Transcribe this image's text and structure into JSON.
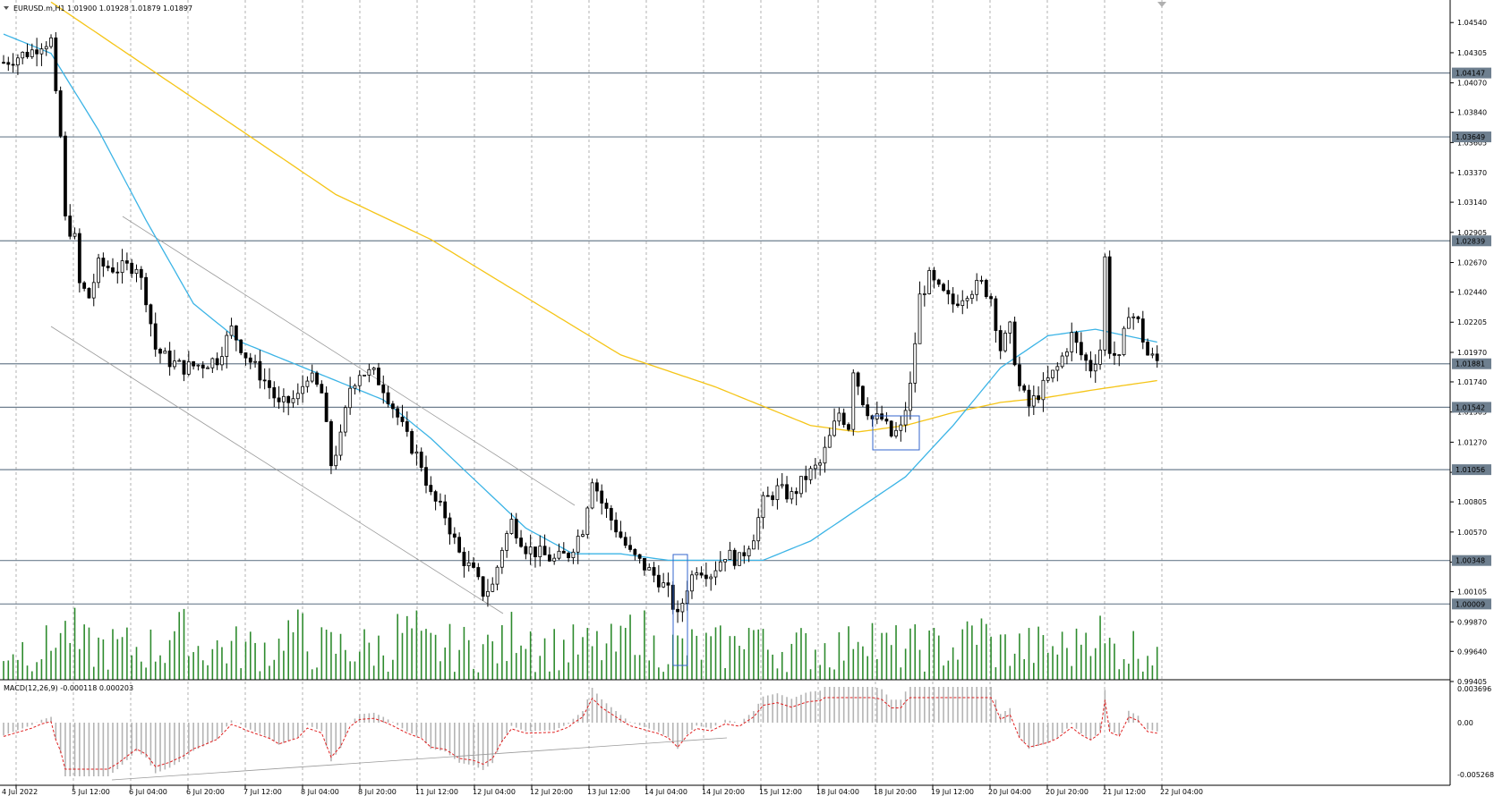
{
  "header": {
    "symbol_line": "EURUSD.m,H1  1.01900 1.01928 1.01879 1.01897"
  },
  "macd": {
    "label": "MACD(12,26,9) -0.000118 0.000203",
    "axis": [
      "0.003696",
      "0.00",
      "-0.005268"
    ]
  },
  "price_axis": {
    "ticks": [
      "1.04540",
      "1.04305",
      "1.04070",
      "1.03840",
      "1.03605",
      "1.03370",
      "1.03140",
      "1.02905",
      "1.02670",
      "1.02440",
      "1.02205",
      "1.01970",
      "1.01740",
      "1.01505",
      "1.01270",
      "1.01035",
      "1.00805",
      "1.00570",
      "1.00335",
      "1.00105",
      "0.99870",
      "0.99640",
      "0.99405"
    ],
    "levels": [
      "1.04147",
      "1.03649",
      "1.02839",
      "1.01881",
      "1.01542",
      "1.01056",
      "1.00348",
      "1.00009"
    ]
  },
  "time_axis": [
    "4 Jul 2022",
    "5 Jul 12:00",
    "6 Jul 04:00",
    "6 Jul 20:00",
    "7 Jul 12:00",
    "8 Jul 04:00",
    "8 Jul 20:00",
    "11 Jul 12:00",
    "12 Jul 04:00",
    "12 Jul 20:00",
    "13 Jul 12:00",
    "14 Jul 04:00",
    "14 Jul 20:00",
    "15 Jul 12:00",
    "18 Jul 04:00",
    "18 Jul 20:00",
    "19 Jul 12:00",
    "20 Jul 04:00",
    "20 Jul 20:00",
    "21 Jul 12:00",
    "22 Jul 04:00"
  ],
  "colors": {
    "candle": "#000000",
    "ma_fast": "#3cb4e6",
    "ma_slow": "#f5c518",
    "volume": "#2e8b2e",
    "level_line": "#6e7f8f",
    "level_label_bg": "#6e7f8f",
    "macd_hist": "#b4b4b4",
    "macd_signal": "#e02020",
    "grid": "#a0a0a0",
    "box": "#3366cc"
  },
  "chart_data": {
    "type": "candlestick",
    "symbol": "EURUSD.m",
    "timeframe": "H1",
    "ylim": [
      0.99405,
      1.0466
    ],
    "last": {
      "open": 1.019,
      "high": 1.01928,
      "low": 1.01879,
      "close": 1.01897
    },
    "horizontal_levels": [
      1.04147,
      1.03649,
      1.02839,
      1.01881,
      1.01542,
      1.01056,
      1.00348,
      1.00009
    ],
    "close_path": [
      [
        0,
        1.0423
      ],
      [
        6,
        1.0432
      ],
      [
        8,
        1.0438
      ],
      [
        10,
        1.044
      ],
      [
        11,
        1.0395
      ],
      [
        12,
        1.0365
      ],
      [
        13,
        1.03
      ],
      [
        15,
        1.0285
      ],
      [
        16,
        1.025
      ],
      [
        18,
        1.024
      ],
      [
        20,
        1.0265
      ],
      [
        24,
        1.0262
      ],
      [
        28,
        1.0265
      ],
      [
        30,
        1.024
      ],
      [
        32,
        1.02
      ],
      [
        35,
        1.019
      ],
      [
        38,
        1.0185
      ],
      [
        42,
        1.0188
      ],
      [
        45,
        1.0192
      ],
      [
        48,
        1.0215
      ],
      [
        51,
        1.0195
      ],
      [
        54,
        1.018
      ],
      [
        56,
        1.017
      ],
      [
        58,
        1.0155
      ],
      [
        62,
        1.0162
      ],
      [
        64,
        1.018
      ],
      [
        67,
        1.0165
      ],
      [
        69,
        1.011
      ],
      [
        71,
        1.013
      ],
      [
        73,
        1.017
      ],
      [
        75,
        1.0182
      ],
      [
        78,
        1.018
      ],
      [
        80,
        1.017
      ],
      [
        82,
        1.0155
      ],
      [
        85,
        1.013
      ],
      [
        88,
        1.011
      ],
      [
        90,
        1.0085
      ],
      [
        93,
        1.007
      ],
      [
        96,
        1.004
      ],
      [
        99,
        1.0025
      ],
      [
        101,
        1.001
      ],
      [
        103,
        1.0015
      ],
      [
        105,
        1.0045
      ],
      [
        107,
        1.0065
      ],
      [
        110,
        1.0045
      ],
      [
        113,
        1.004
      ],
      [
        116,
        1.0035
      ],
      [
        119,
        1.004
      ],
      [
        122,
        1.006
      ],
      [
        124,
        1.01
      ],
      [
        126,
        1.008
      ],
      [
        129,
        1.006
      ],
      [
        132,
        1.004
      ],
      [
        135,
        1.003
      ],
      [
        138,
        1.002
      ],
      [
        140,
        1.001
      ],
      [
        142,
        0.999
      ],
      [
        144,
        1.0015
      ],
      [
        146,
        1.003
      ],
      [
        149,
        1.0025
      ],
      [
        152,
        1.004
      ],
      [
        155,
        1.0035
      ],
      [
        158,
        1.0055
      ],
      [
        160,
        1.008
      ],
      [
        163,
        1.009
      ],
      [
        166,
        1.0085
      ],
      [
        169,
        1.01
      ],
      [
        172,
        1.011
      ],
      [
        174,
        1.013
      ],
      [
        176,
        1.015
      ],
      [
        178,
        1.014
      ],
      [
        179,
        1.0185
      ],
      [
        181,
        1.016
      ],
      [
        183,
        1.0145
      ],
      [
        185,
        1.0145
      ],
      [
        187,
        1.0132
      ],
      [
        189,
        1.0137
      ],
      [
        191,
        1.017
      ],
      [
        193,
        1.024
      ],
      [
        195,
        1.0255
      ],
      [
        197,
        1.0245
      ],
      [
        200,
        1.0235
      ],
      [
        203,
        1.0245
      ],
      [
        206,
        1.025
      ],
      [
        208,
        1.024
      ],
      [
        210,
        1.02
      ],
      [
        212,
        1.0215
      ],
      [
        214,
        1.017
      ],
      [
        216,
        1.0155
      ],
      [
        219,
        1.017
      ],
      [
        222,
        1.0185
      ],
      [
        225,
        1.021
      ],
      [
        227,
        1.0195
      ],
      [
        229,
        1.0185
      ],
      [
        231,
        1.02
      ],
      [
        232,
        1.027
      ],
      [
        233,
        1.02
      ],
      [
        235,
        1.019
      ],
      [
        237,
        1.023
      ],
      [
        239,
        1.022
      ],
      [
        241,
        1.0195
      ],
      [
        243,
        1.019
      ]
    ],
    "ma_fast_path": [
      [
        0,
        1.0445
      ],
      [
        10,
        1.043
      ],
      [
        20,
        1.037
      ],
      [
        30,
        1.03
      ],
      [
        40,
        1.0235
      ],
      [
        50,
        1.0205
      ],
      [
        60,
        1.019
      ],
      [
        70,
        1.0175
      ],
      [
        80,
        1.016
      ],
      [
        90,
        1.013
      ],
      [
        100,
        1.0095
      ],
      [
        110,
        1.006
      ],
      [
        120,
        1.004
      ],
      [
        130,
        1.004
      ],
      [
        140,
        1.0035
      ],
      [
        150,
        1.0035
      ],
      [
        160,
        1.0035
      ],
      [
        170,
        1.005
      ],
      [
        180,
        1.0075
      ],
      [
        190,
        1.01
      ],
      [
        200,
        1.014
      ],
      [
        210,
        1.0185
      ],
      [
        220,
        1.021
      ],
      [
        230,
        1.0215
      ],
      [
        243,
        1.0205
      ]
    ],
    "ma_slow_path": [
      [
        10,
        1.047
      ],
      [
        30,
        1.042
      ],
      [
        50,
        1.037
      ],
      [
        70,
        1.032
      ],
      [
        90,
        1.0285
      ],
      [
        110,
        1.024
      ],
      [
        130,
        1.0195
      ],
      [
        150,
        1.017
      ],
      [
        170,
        1.014
      ],
      [
        180,
        1.0135
      ],
      [
        190,
        1.014
      ],
      [
        200,
        1.015
      ],
      [
        210,
        1.0158
      ],
      [
        220,
        1.0162
      ],
      [
        230,
        1.0168
      ],
      [
        243,
        1.0175
      ]
    ]
  }
}
